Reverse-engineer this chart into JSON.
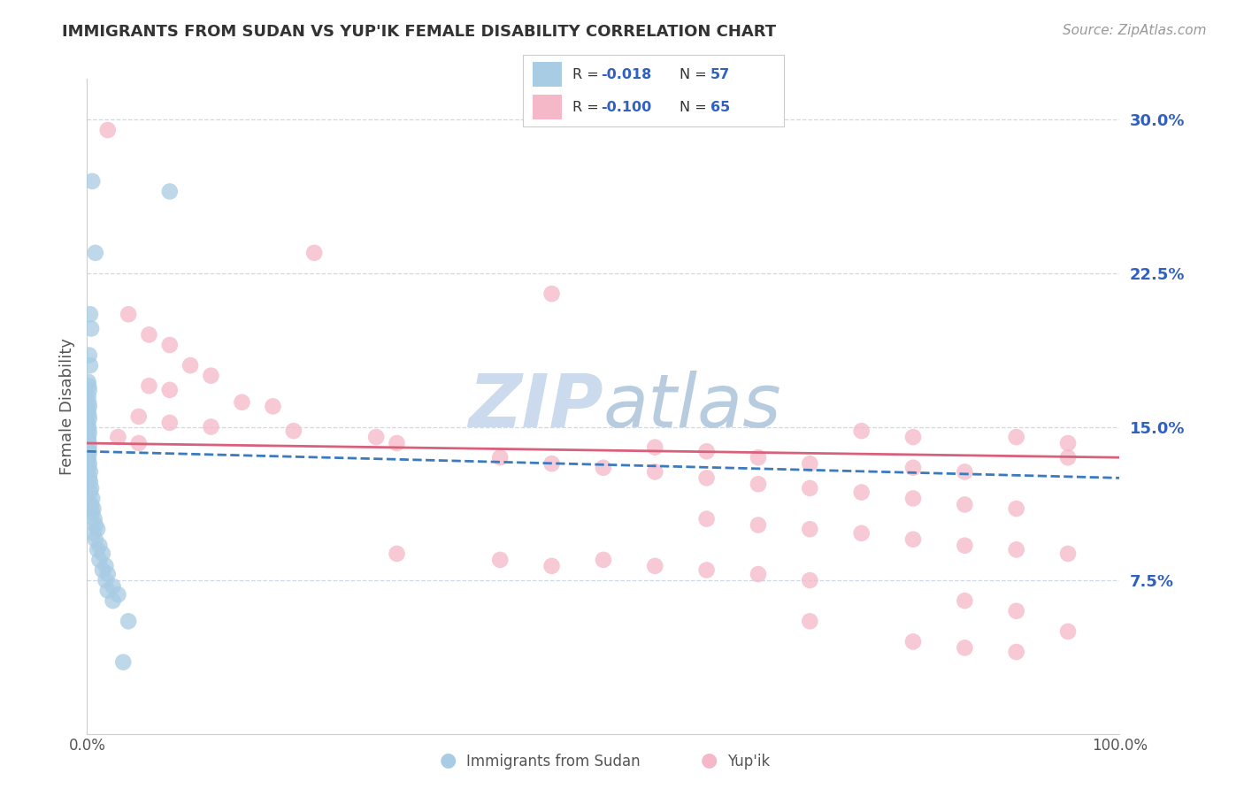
{
  "title": "IMMIGRANTS FROM SUDAN VS YUP'IK FEMALE DISABILITY CORRELATION CHART",
  "source": "Source: ZipAtlas.com",
  "ylabel": "Female Disability",
  "legend_blue_label": "Immigrants from Sudan",
  "legend_pink_label": "Yup'ik",
  "blue_color": "#a8cce4",
  "pink_color": "#f4b8c8",
  "blue_line_color": "#3a7abf",
  "pink_line_color": "#d9607a",
  "blue_dashed": true,
  "r_value_color": "#3060c0",
  "background_color": "#ffffff",
  "grid_color": "#d0d8e8",
  "watermark_color": "#ccdaee",
  "title_color": "#333333",
  "axis_label_color": "#555555",
  "ytick_color": "#3060c0",
  "xlim": [
    0,
    100
  ],
  "ylim": [
    0,
    32
  ],
  "yticks": [
    7.5,
    15.0,
    22.5,
    30.0
  ],
  "blue_scatter": [
    [
      0.5,
      27.0
    ],
    [
      8.0,
      26.5
    ],
    [
      0.8,
      23.5
    ],
    [
      0.3,
      20.5
    ],
    [
      0.4,
      19.8
    ],
    [
      0.2,
      18.5
    ],
    [
      0.3,
      18.0
    ],
    [
      0.1,
      17.2
    ],
    [
      0.15,
      17.0
    ],
    [
      0.2,
      16.8
    ],
    [
      0.1,
      16.5
    ],
    [
      0.15,
      16.2
    ],
    [
      0.2,
      16.0
    ],
    [
      0.1,
      15.8
    ],
    [
      0.15,
      15.6
    ],
    [
      0.2,
      15.4
    ],
    [
      0.05,
      15.2
    ],
    [
      0.1,
      15.0
    ],
    [
      0.15,
      14.9
    ],
    [
      0.2,
      14.7
    ],
    [
      0.1,
      14.5
    ],
    [
      0.15,
      14.3
    ],
    [
      0.2,
      14.1
    ],
    [
      0.1,
      13.9
    ],
    [
      0.2,
      13.8
    ],
    [
      0.15,
      13.6
    ],
    [
      0.1,
      13.4
    ],
    [
      0.2,
      13.2
    ],
    [
      0.15,
      13.0
    ],
    [
      0.3,
      12.8
    ],
    [
      0.2,
      12.5
    ],
    [
      0.3,
      12.3
    ],
    [
      0.4,
      12.0
    ],
    [
      0.3,
      11.8
    ],
    [
      0.5,
      11.5
    ],
    [
      0.4,
      11.2
    ],
    [
      0.6,
      11.0
    ],
    [
      0.5,
      10.8
    ],
    [
      0.7,
      10.5
    ],
    [
      0.8,
      10.2
    ],
    [
      1.0,
      10.0
    ],
    [
      0.6,
      9.8
    ],
    [
      0.8,
      9.5
    ],
    [
      1.2,
      9.2
    ],
    [
      1.0,
      9.0
    ],
    [
      1.5,
      8.8
    ],
    [
      1.2,
      8.5
    ],
    [
      1.8,
      8.2
    ],
    [
      1.5,
      8.0
    ],
    [
      2.0,
      7.8
    ],
    [
      1.8,
      7.5
    ],
    [
      2.5,
      7.2
    ],
    [
      2.0,
      7.0
    ],
    [
      3.0,
      6.8
    ],
    [
      2.5,
      6.5
    ],
    [
      4.0,
      5.5
    ],
    [
      3.5,
      3.5
    ]
  ],
  "pink_scatter": [
    [
      2.0,
      29.5
    ],
    [
      22.0,
      23.5
    ],
    [
      45.0,
      21.5
    ],
    [
      4.0,
      20.5
    ],
    [
      6.0,
      19.5
    ],
    [
      8.0,
      19.0
    ],
    [
      10.0,
      18.0
    ],
    [
      12.0,
      17.5
    ],
    [
      6.0,
      17.0
    ],
    [
      8.0,
      16.8
    ],
    [
      15.0,
      16.2
    ],
    [
      18.0,
      16.0
    ],
    [
      5.0,
      15.5
    ],
    [
      8.0,
      15.2
    ],
    [
      12.0,
      15.0
    ],
    [
      20.0,
      14.8
    ],
    [
      3.0,
      14.5
    ],
    [
      5.0,
      14.2
    ],
    [
      55.0,
      14.0
    ],
    [
      60.0,
      13.8
    ],
    [
      65.0,
      13.5
    ],
    [
      70.0,
      13.2
    ],
    [
      28.0,
      14.5
    ],
    [
      30.0,
      14.2
    ],
    [
      40.0,
      13.5
    ],
    [
      45.0,
      13.2
    ],
    [
      50.0,
      13.0
    ],
    [
      55.0,
      12.8
    ],
    [
      60.0,
      12.5
    ],
    [
      65.0,
      12.2
    ],
    [
      70.0,
      12.0
    ],
    [
      75.0,
      11.8
    ],
    [
      80.0,
      11.5
    ],
    [
      85.0,
      11.2
    ],
    [
      90.0,
      11.0
    ],
    [
      95.0,
      13.5
    ],
    [
      80.0,
      13.0
    ],
    [
      85.0,
      12.8
    ],
    [
      90.0,
      14.5
    ],
    [
      95.0,
      14.2
    ],
    [
      75.0,
      14.8
    ],
    [
      80.0,
      14.5
    ],
    [
      60.0,
      10.5
    ],
    [
      65.0,
      10.2
    ],
    [
      70.0,
      10.0
    ],
    [
      75.0,
      9.8
    ],
    [
      80.0,
      9.5
    ],
    [
      85.0,
      9.2
    ],
    [
      90.0,
      9.0
    ],
    [
      95.0,
      8.8
    ],
    [
      50.0,
      8.5
    ],
    [
      55.0,
      8.2
    ],
    [
      60.0,
      8.0
    ],
    [
      65.0,
      7.8
    ],
    [
      70.0,
      7.5
    ],
    [
      40.0,
      8.5
    ],
    [
      45.0,
      8.2
    ],
    [
      30.0,
      8.8
    ],
    [
      85.0,
      6.5
    ],
    [
      90.0,
      6.0
    ],
    [
      70.0,
      5.5
    ],
    [
      80.0,
      4.5
    ],
    [
      85.0,
      4.2
    ],
    [
      90.0,
      4.0
    ],
    [
      95.0,
      5.0
    ]
  ],
  "blue_trend_x": [
    0,
    100
  ],
  "blue_trend_y": [
    13.8,
    12.5
  ],
  "pink_trend_x": [
    0,
    100
  ],
  "pink_trend_y": [
    14.2,
    13.5
  ]
}
